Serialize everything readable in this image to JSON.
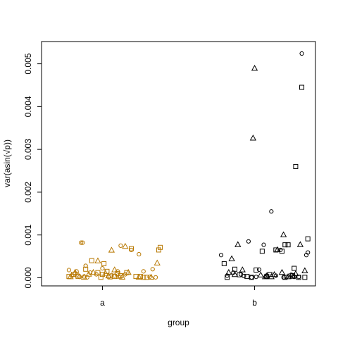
{
  "chart_data": {
    "type": "scatter",
    "xlabel": "group",
    "ylabel": "var(asin(√p))",
    "categories": [
      "a",
      "b"
    ],
    "ylim": [
      -0.00019,
      0.00552
    ],
    "yticks": [
      0.0,
      0.001,
      0.002,
      0.003,
      0.004,
      0.005
    ],
    "ytick_labels": [
      "0.000",
      "0.001",
      "0.002",
      "0.003",
      "0.004",
      "0.005"
    ],
    "grid": false,
    "legend": "none",
    "series": [
      {
        "group": "a",
        "color": "#b87800",
        "circle": [
          [
            0.78,
            0.00018
          ],
          [
            0.8,
            5e-05
          ],
          [
            0.82,
            0.0001
          ],
          [
            0.85,
            2e-05
          ],
          [
            0.88,
            3e-05
          ],
          [
            0.86,
            0.00082
          ],
          [
            0.87,
            0.00082
          ],
          [
            0.89,
            0.00028
          ],
          [
            0.92,
            0.00012
          ],
          [
            0.96,
            8e-05
          ],
          [
            1.0,
            0.00022
          ],
          [
            1.04,
            2e-05
          ],
          [
            1.08,
            5e-05
          ],
          [
            1.1,
            0.00015
          ],
          [
            1.12,
            0.00075
          ],
          [
            1.15,
            8e-05
          ],
          [
            1.19,
            0.00065
          ],
          [
            1.24,
            0.00055
          ],
          [
            1.27,
            0.00015
          ],
          [
            1.31,
            2e-05
          ],
          [
            1.33,
            0.0002
          ],
          [
            1.35,
            1e-05
          ],
          [
            0.83,
            0.00015
          ],
          [
            0.9,
            1e-05
          ],
          [
            1.06,
            6e-05
          ]
        ],
        "triangle": [
          [
            0.79,
            2e-05
          ],
          [
            0.82,
            0.00012
          ],
          [
            0.84,
            6e-05
          ],
          [
            0.88,
            1e-05
          ],
          [
            0.94,
            0.00012
          ],
          [
            0.97,
            0.00039
          ],
          [
            1.02,
            0.0001
          ],
          [
            1.04,
            4e-05
          ],
          [
            1.06,
            0.00064
          ],
          [
            1.08,
            0.00018
          ],
          [
            1.13,
            1e-05
          ],
          [
            1.15,
            0.00073
          ],
          [
            1.17,
            0.00012
          ],
          [
            1.24,
            1e-05
          ],
          [
            1.32,
            1e-05
          ],
          [
            1.36,
            0.00034
          ],
          [
            0.91,
            8e-05
          ],
          [
            1.11,
            3e-05
          ]
        ],
        "square": [
          [
            0.78,
            3e-05
          ],
          [
            0.81,
            8e-05
          ],
          [
            0.84,
            3e-05
          ],
          [
            0.89,
            0.0002
          ],
          [
            0.93,
            0.0004
          ],
          [
            0.97,
            0.00012
          ],
          [
            1.0,
            8e-05
          ],
          [
            1.01,
            0.00033
          ],
          [
            1.03,
            0.00015
          ],
          [
            1.05,
            2e-05
          ],
          [
            1.08,
            3e-05
          ],
          [
            1.1,
            0.0001
          ],
          [
            1.12,
            5e-05
          ],
          [
            1.16,
            0.00012
          ],
          [
            1.19,
            0.00068
          ],
          [
            1.22,
            3e-05
          ],
          [
            1.25,
            3e-05
          ],
          [
            1.29,
            1e-05
          ],
          [
            1.37,
            0.00065
          ],
          [
            1.38,
            0.00071
          ],
          [
            0.99,
            1e-05
          ],
          [
            1.27,
            1e-05
          ]
        ]
      },
      {
        "group": "b",
        "color": "#000000",
        "circle": [
          [
            1.78,
            0.00053
          ],
          [
            1.82,
            5e-05
          ],
          [
            1.86,
            0.00012
          ],
          [
            1.91,
            8e-05
          ],
          [
            1.93,
            4e-05
          ],
          [
            1.96,
            0.00085
          ],
          [
            2.01,
            2e-05
          ],
          [
            2.03,
            0.00019
          ],
          [
            2.06,
            0.00077
          ],
          [
            2.08,
            2e-05
          ],
          [
            2.11,
            0.00155
          ],
          [
            2.14,
            5e-05
          ],
          [
            2.17,
            0.00065
          ],
          [
            2.21,
            2e-05
          ],
          [
            2.24,
            7e-05
          ],
          [
            2.26,
            2e-05
          ],
          [
            2.29,
            2e-05
          ],
          [
            2.31,
            0.00524
          ],
          [
            2.34,
            0.00053
          ],
          [
            2.35,
            0.00059
          ],
          [
            2.19,
            1e-05
          ],
          [
            1.98,
            1e-05
          ]
        ],
        "triangle": [
          [
            1.83,
            0.00012
          ],
          [
            1.85,
            0.00044
          ],
          [
            1.87,
            7e-05
          ],
          [
            1.89,
            0.00077
          ],
          [
            1.92,
            0.00018
          ],
          [
            1.99,
            0.00326
          ],
          [
            2.0,
            0.00489
          ],
          [
            2.04,
            6e-05
          ],
          [
            2.07,
            2e-05
          ],
          [
            2.11,
            2e-05
          ],
          [
            2.13,
            7e-05
          ],
          [
            2.15,
            0.00065
          ],
          [
            2.18,
            0.00012
          ],
          [
            2.19,
            0.001
          ],
          [
            2.22,
            2e-05
          ],
          [
            2.25,
            3e-05
          ],
          [
            2.27,
            9e-05
          ],
          [
            2.3,
            0.00077
          ],
          [
            2.33,
            0.00016
          ],
          [
            2.08,
            4e-05
          ]
        ],
        "square": [
          [
            1.8,
            0.00033
          ],
          [
            1.82,
            1e-05
          ],
          [
            1.87,
            0.0002
          ],
          [
            1.9,
            7e-05
          ],
          [
            1.95,
            3e-05
          ],
          [
            1.98,
            1e-05
          ],
          [
            2.01,
            0.00018
          ],
          [
            2.05,
            0.00062
          ],
          [
            2.08,
            3e-05
          ],
          [
            2.1,
            8e-05
          ],
          [
            2.14,
            0.00065
          ],
          [
            2.18,
            0.00062
          ],
          [
            2.2,
            0.00077
          ],
          [
            2.22,
            0.00077
          ],
          [
            2.25,
            5e-05
          ],
          [
            2.26,
            0.00022
          ],
          [
            2.27,
            0.0026
          ],
          [
            2.29,
            1e-05
          ],
          [
            2.31,
            0.00445
          ],
          [
            2.33,
            1e-05
          ],
          [
            2.35,
            0.00091
          ],
          [
            2.2,
            1e-05
          ]
        ]
      }
    ]
  }
}
